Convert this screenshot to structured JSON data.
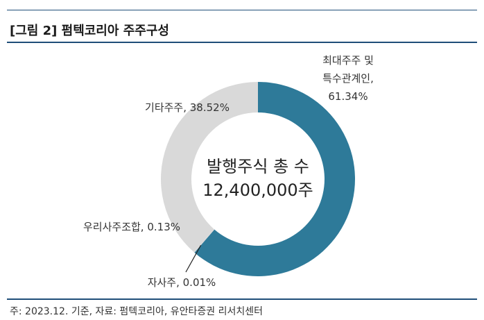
{
  "figure": {
    "title": "[그림 2] 펌텍코리아 주주구성",
    "source": "주: 2023.12. 기준, 자료: 펌텍코리아, 유안타증권 리서치센터"
  },
  "chart_data": {
    "type": "pie",
    "donut": true,
    "center_text": [
      "발행주식 총 수",
      "12,400,000주"
    ],
    "slices": [
      {
        "label_lines": [
          "최대주주 및",
          "특수관계인,",
          "61.34%"
        ],
        "value": 61.34,
        "color": "#2e7a99"
      },
      {
        "label_lines": [
          "자사주, 0.01%"
        ],
        "value": 0.01,
        "color": "#2e7a99"
      },
      {
        "label_lines": [
          "우리사주조합, 0.13%"
        ],
        "value": 0.13,
        "color": "#d9d9d9"
      },
      {
        "label_lines": [
          "기타주주, 38.52%"
        ],
        "value": 38.52,
        "color": "#d9d9d9"
      }
    ]
  }
}
